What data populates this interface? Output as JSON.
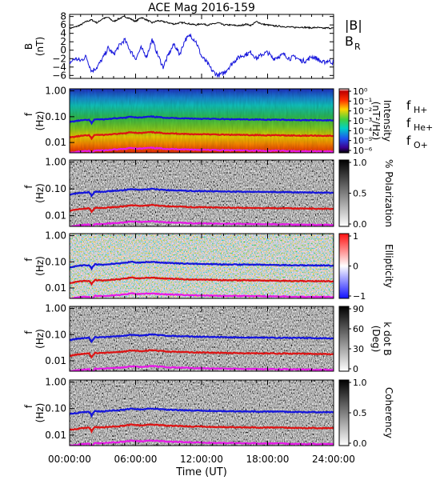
{
  "chart_data": {
    "title": "ACE Mag 2016-159",
    "xlabel": "Time (UT)",
    "time_ticks": [
      "00:00:00",
      "06:00:00",
      "12:00:00",
      "18:00:00",
      "24:00:00"
    ],
    "x_range_hours": [
      0,
      24
    ],
    "line_panel": {
      "type": "line",
      "ylabel": "B",
      "yunit": "(nT)",
      "ylim": [
        -6.7,
        8.5
      ],
      "yticks": [
        "8",
        "6",
        "4",
        "2",
        "0",
        "−2",
        "−4",
        "−6"
      ],
      "ytick_values": [
        8,
        6,
        4,
        2,
        0,
        -2,
        -4,
        -6
      ],
      "series": [
        {
          "name": "|B|",
          "color": "#000000",
          "hours": [
            0,
            0.5,
            1,
            1.5,
            2,
            2.5,
            3,
            3.5,
            4,
            4.5,
            5,
            5.5,
            6,
            6.5,
            7,
            7.5,
            8,
            8.5,
            9,
            9.5,
            10,
            10.5,
            11,
            11.5,
            12,
            12.5,
            13,
            13.5,
            14,
            14.5,
            15,
            15.5,
            16,
            16.5,
            17,
            17.5,
            18,
            18.5,
            19,
            19.5,
            20,
            20.5,
            21,
            21.5,
            22,
            22.5,
            23,
            23.5,
            24
          ],
          "values": [
            5.2,
            5.5,
            6,
            6.8,
            7.2,
            6.5,
            7.5,
            7.8,
            6.8,
            7.5,
            8,
            7.5,
            6.8,
            7.8,
            7.2,
            6.5,
            7,
            6.8,
            6.5,
            6.2,
            6.5,
            6.5,
            6.2,
            6,
            6.3,
            6,
            6.2,
            6.5,
            6,
            6,
            5.9,
            5.8,
            6.2,
            5.9,
            6.8,
            6.2,
            6,
            5.8,
            5.7,
            5.6,
            5.5,
            5.4,
            5.5,
            5.4,
            5.3,
            5.4,
            5.2,
            5.3,
            5.2
          ]
        },
        {
          "name": "B",
          "subscript": "R",
          "color": "#1515dc",
          "hours": [
            0,
            0.5,
            1,
            1.5,
            2,
            2.5,
            3,
            3.5,
            4,
            4.5,
            5,
            5.5,
            6,
            6.5,
            7,
            7.5,
            8,
            8.5,
            9,
            9.5,
            10,
            10.5,
            11,
            11.5,
            12,
            12.5,
            13,
            13.5,
            14,
            14.5,
            15,
            15.5,
            16,
            16.5,
            17,
            17.5,
            18,
            18.5,
            19,
            19.5,
            20,
            20.5,
            21,
            21.5,
            22,
            22.5,
            23,
            23.5,
            24
          ],
          "values": [
            -3,
            -2,
            -2.5,
            -1.5,
            -5,
            -4,
            -2,
            0.5,
            -1,
            1,
            2.5,
            0,
            -2,
            0.5,
            -1.5,
            2.5,
            -1,
            -4,
            -1,
            1.5,
            -1,
            2.5,
            3.5,
            2,
            -1.5,
            -3,
            -5,
            -6,
            -5.5,
            -4,
            -2.5,
            -1.5,
            -1,
            -0.5,
            -2,
            -1,
            -0.5,
            -2,
            -1.5,
            -1,
            -2,
            -1.5,
            -2.5,
            -2.5,
            -1.5,
            -2,
            -3,
            -2.5,
            -3
          ]
        }
      ],
      "legend": [
        {
          "label": "|B|",
          "color": "#000000"
        },
        {
          "label": "B",
          "sub": "R",
          "color": "#1515dc"
        }
      ]
    },
    "spectrogram_panels": [
      {
        "type": "heatmap",
        "colormap": "rainbow",
        "colorbar_label": "Intensity",
        "colorbar_unit": "(nT²/Hz)",
        "colorbar_ticks": [
          "10⁰",
          "10⁻¹",
          "10⁻²",
          "10⁻³",
          "10⁻⁴",
          "10⁻⁵",
          "10⁻⁶"
        ],
        "legend": [
          {
            "label": "f",
            "sub": "H+",
            "color": "#1515dc"
          },
          {
            "label": "f",
            "sub": "He+",
            "color": "#dc1414"
          },
          {
            "label": "f",
            "sub": "O+",
            "color": "#e619e6"
          }
        ]
      },
      {
        "type": "heatmap",
        "colormap": "gray",
        "colorbar_label": "% Polarization",
        "colorbar_ticks": [
          "1.0",
          "0.5",
          "0.0"
        ]
      },
      {
        "type": "heatmap",
        "colormap": "bwr",
        "colorbar_label": "Ellipticity",
        "colorbar_ticks": [
          "1",
          "0",
          "−1"
        ]
      },
      {
        "type": "heatmap",
        "colormap": "gray",
        "colorbar_label": "k dot B",
        "colorbar_unit": "(Deg)",
        "colorbar_ticks": [
          "90",
          "60",
          "30",
          "0"
        ]
      },
      {
        "type": "heatmap",
        "colormap": "gray",
        "colorbar_label": "Coherency",
        "colorbar_ticks": [
          "1.0",
          "0.5",
          "0.0"
        ]
      }
    ],
    "freq_axis": {
      "label": "f",
      "unit": "(Hz)",
      "scale": "log",
      "ylim": [
        0.004,
        1.2
      ],
      "ticks": [
        "1.00",
        "0.10",
        "0.01"
      ],
      "tick_values": [
        1,
        0.1,
        0.01
      ]
    },
    "gyro_lines": {
      "hours": [
        0,
        1,
        1.8,
        2,
        2.3,
        3,
        4,
        5,
        5.6,
        6,
        6.5,
        7,
        7.5,
        8,
        8.3,
        9,
        10,
        11,
        12,
        13,
        14,
        15,
        16,
        17,
        17.6,
        18,
        19,
        20,
        21,
        22,
        23,
        24
      ],
      "fH": [
        0.062,
        0.072,
        0.075,
        0.055,
        0.08,
        0.078,
        0.085,
        0.09,
        0.1,
        0.095,
        0.092,
        0.098,
        0.1,
        0.096,
        0.094,
        0.09,
        0.087,
        0.085,
        0.083,
        0.082,
        0.08,
        0.079,
        0.078,
        0.078,
        0.077,
        0.077,
        0.076,
        0.075,
        0.074,
        0.074,
        0.073,
        0.072
      ],
      "fHe": [
        0.0155,
        0.018,
        0.019,
        0.014,
        0.02,
        0.0195,
        0.021,
        0.0225,
        0.025,
        0.024,
        0.023,
        0.0245,
        0.025,
        0.024,
        0.0235,
        0.0225,
        0.022,
        0.021,
        0.021,
        0.0205,
        0.02,
        0.0198,
        0.0195,
        0.0195,
        0.019,
        0.0193,
        0.019,
        0.0188,
        0.0185,
        0.0185,
        0.0183,
        0.018
      ],
      "fO": [
        0.0039,
        0.0045,
        0.0047,
        0.0035,
        0.005,
        0.0049,
        0.0053,
        0.0056,
        0.0062,
        0.006,
        0.0058,
        0.0061,
        0.0062,
        0.006,
        0.0059,
        0.0056,
        0.0055,
        0.0053,
        0.0052,
        0.0051,
        0.005,
        0.005,
        0.0049,
        0.0049,
        0.0048,
        0.0048,
        0.0048,
        0.0047,
        0.0046,
        0.0046,
        0.0046,
        0.0045
      ],
      "colors": {
        "fH": "#1515dc",
        "fHe": "#dc1414",
        "fO": "#e619e6"
      }
    }
  }
}
